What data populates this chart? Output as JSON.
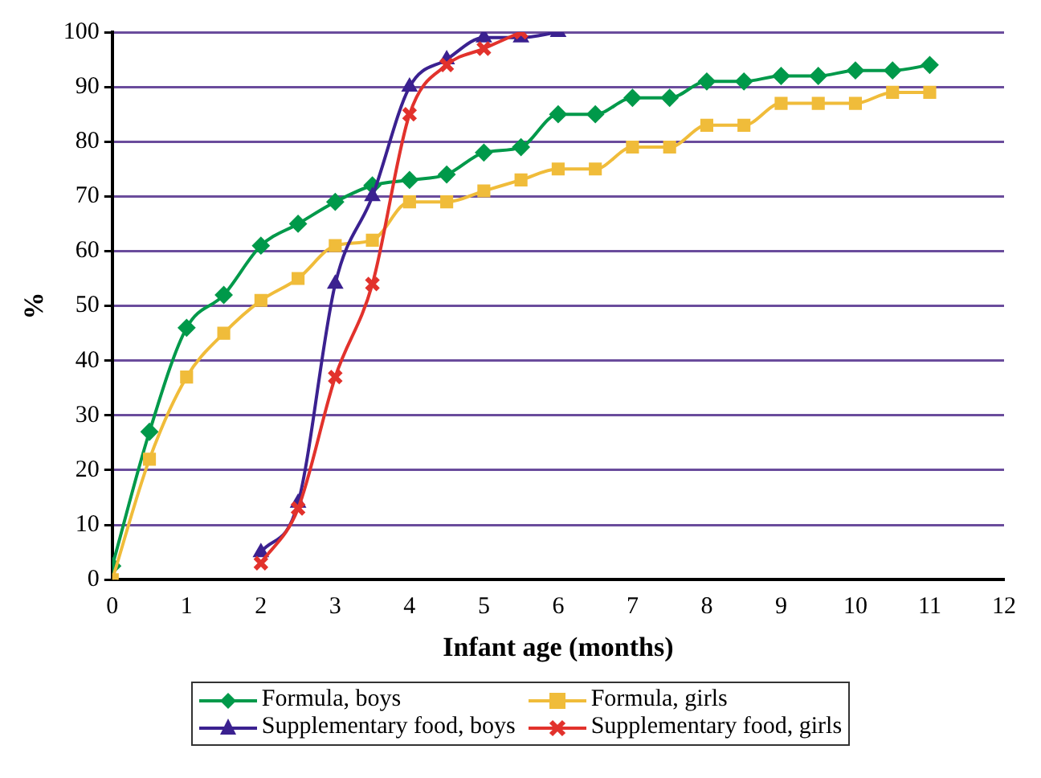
{
  "chart_data": {
    "type": "line",
    "xlabel": "Infant age (months)",
    "ylabel": "%",
    "xlim": [
      0,
      12
    ],
    "xticks": [
      0,
      1,
      2,
      3,
      4,
      5,
      6,
      7,
      8,
      9,
      10,
      11,
      12
    ],
    "ylim": [
      0,
      100
    ],
    "yticks": [
      0,
      10,
      20,
      30,
      40,
      50,
      60,
      70,
      80,
      90,
      100
    ],
    "grid": "y",
    "legend": "bottom",
    "series": [
      {
        "name": "Formula, boys",
        "color": "#00994a",
        "marker": "diamond",
        "x": [
          0,
          0.5,
          1,
          1.5,
          2,
          2.5,
          3,
          3.5,
          4,
          4.5,
          5,
          5.5,
          6,
          6.5,
          7,
          7.5,
          8,
          8.5,
          9,
          9.5,
          10,
          10.5,
          11
        ],
        "values": [
          2.5,
          27,
          46,
          52,
          61,
          65,
          69,
          72,
          73,
          74,
          78,
          79,
          85,
          85,
          88,
          88,
          91,
          91,
          92,
          92,
          93,
          93,
          94
        ]
      },
      {
        "name": "Formula, girls",
        "color": "#f0bc3a",
        "marker": "square",
        "x": [
          0,
          0.5,
          1,
          1.5,
          2,
          2.5,
          3,
          3.5,
          4,
          4.5,
          5,
          5.5,
          6,
          6.5,
          7,
          7.5,
          8,
          8.5,
          9,
          9.5,
          10,
          10.5,
          11
        ],
        "values": [
          0,
          22,
          37,
          45,
          51,
          55,
          61,
          62,
          69,
          69,
          71,
          73,
          75,
          75,
          79,
          79,
          83,
          83,
          87,
          87,
          87,
          89,
          89
        ]
      },
      {
        "name": "Supplementary food, boys",
        "color": "#3b2190",
        "marker": "triangle",
        "x": [
          2,
          2.5,
          3,
          3.5,
          4,
          4.5,
          5,
          5.5,
          6
        ],
        "values": [
          5,
          14,
          54,
          70,
          90,
          95,
          99,
          99,
          100
        ]
      },
      {
        "name": "Supplementary food, girls",
        "color": "#e2322c",
        "marker": "cross",
        "x": [
          2,
          2.5,
          3,
          3.5,
          4,
          4.5,
          5,
          5.5
        ],
        "values": [
          3,
          13,
          37,
          54,
          85,
          94,
          97,
          100
        ]
      }
    ]
  }
}
